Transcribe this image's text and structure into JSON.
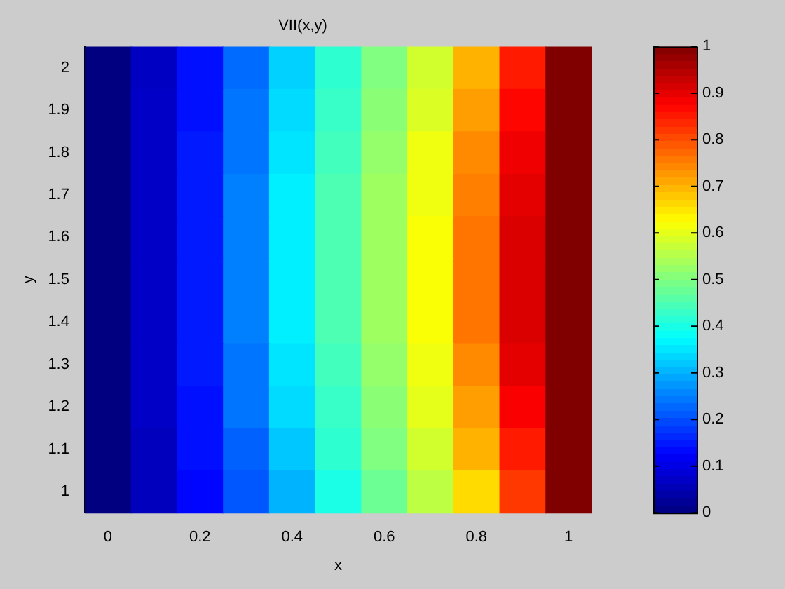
{
  "chart_data": {
    "type": "heatmap",
    "title": "VII(x,y)",
    "xlabel": "x",
    "ylabel": "y",
    "categories": [
      "0",
      null,
      "0.2",
      null,
      "0.4",
      null,
      "0.6",
      null,
      "0.8",
      null,
      "1"
    ],
    "y_categories": [
      "2",
      "1.9",
      "1.8",
      "1.7",
      "1.6",
      "1.5",
      "1.4",
      "1.3",
      "1.2",
      "1.1",
      "1"
    ],
    "clim": [
      0,
      1
    ],
    "cticks": [
      0,
      0.1,
      0.2,
      0.3,
      0.4,
      0.5,
      0.6,
      0.7,
      0.8,
      0.9,
      1
    ],
    "cells": [
      [
        0,
        0.065,
        0.14,
        0.23,
        0.33,
        0.42,
        0.5,
        0.58,
        0.7,
        0.85,
        1
      ],
      [
        0,
        0.07,
        0.14,
        0.24,
        0.34,
        0.43,
        0.51,
        0.59,
        0.72,
        0.87,
        1
      ],
      [
        0,
        0.07,
        0.15,
        0.24,
        0.35,
        0.44,
        0.52,
        0.61,
        0.74,
        0.89,
        1
      ],
      [
        0,
        0.07,
        0.15,
        0.25,
        0.36,
        0.45,
        0.53,
        0.61,
        0.75,
        0.9,
        1
      ],
      [
        0,
        0.07,
        0.15,
        0.25,
        0.36,
        0.45,
        0.53,
        0.62,
        0.76,
        0.91,
        1
      ],
      [
        0,
        0.07,
        0.15,
        0.25,
        0.36,
        0.45,
        0.53,
        0.62,
        0.76,
        0.91,
        1
      ],
      [
        0,
        0.07,
        0.15,
        0.25,
        0.36,
        0.45,
        0.53,
        0.62,
        0.76,
        0.91,
        1
      ],
      [
        0,
        0.07,
        0.15,
        0.24,
        0.35,
        0.44,
        0.52,
        0.61,
        0.74,
        0.9,
        1
      ],
      [
        0,
        0.07,
        0.14,
        0.24,
        0.34,
        0.43,
        0.51,
        0.6,
        0.72,
        0.88,
        1
      ],
      [
        0,
        0.06,
        0.14,
        0.22,
        0.32,
        0.42,
        0.5,
        0.58,
        0.7,
        0.85,
        1
      ],
      [
        0,
        0.06,
        0.13,
        0.21,
        0.3,
        0.4,
        0.48,
        0.56,
        0.66,
        0.82,
        1
      ]
    ]
  }
}
